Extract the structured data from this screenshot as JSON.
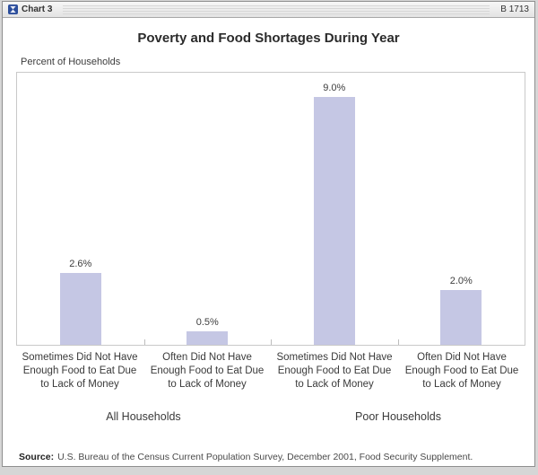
{
  "window": {
    "title": "Chart 3",
    "badge": "B 1713"
  },
  "chart_data": {
    "type": "bar",
    "title": "Poverty and Food Shortages During Year",
    "ylabel": "Percent of Households",
    "ylim": [
      0,
      10
    ],
    "grid": false,
    "legend": "none",
    "bar_color": "#c5c7e4",
    "values": [
      2.6,
      0.5,
      9.0,
      2.0
    ],
    "categories": [
      "Sometimes Did Not Have Enough Food to Eat Due to Lack of Money",
      "Often Did Not Have Enough Food to Eat Due to Lack of Money",
      "Sometimes Did Not Have Enough Food to Eat Due to Lack of Money",
      "Often Did Not Have Enough Food to Eat Due to Lack of Money"
    ],
    "group_labels": [
      "All Households",
      "Poor Households"
    ],
    "bars": [
      {
        "group": "All Households",
        "value": 2.6,
        "value_label": "2.6%",
        "label_lines": [
          "Sometimes Did Not Have",
          "Enough Food to Eat Due",
          "to Lack of Money"
        ]
      },
      {
        "group": "All Households",
        "value": 0.5,
        "value_label": "0.5%",
        "label_lines": [
          "Often Did Not Have",
          "Enough Food to Eat Due",
          "to Lack of Money"
        ]
      },
      {
        "group": "Poor Households",
        "value": 9.0,
        "value_label": "9.0%",
        "label_lines": [
          "Sometimes Did Not Have",
          "Enough Food to Eat Due",
          "to Lack of Money"
        ]
      },
      {
        "group": "Poor Households",
        "value": 2.0,
        "value_label": "2.0%",
        "label_lines": [
          "Often Did Not Have",
          "Enough Food to Eat Due",
          "to Lack of Money"
        ]
      }
    ]
  },
  "source": {
    "label": "Source:",
    "text": "U.S. Bureau of the Census Current Population Survey, December 2001, Food Security Supplement."
  }
}
